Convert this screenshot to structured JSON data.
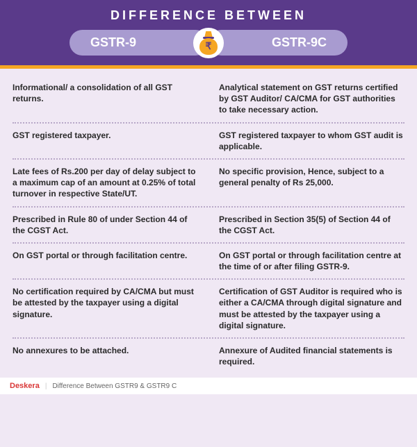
{
  "header": {
    "title": "DIFFERENCE  BETWEEN",
    "left_label": "GSTR-9",
    "right_label": "GSTR-9C",
    "icon_symbol": "₹"
  },
  "colors": {
    "header_bg": "#5a3a8a",
    "pill_bg": "#a89bd0",
    "accent": "#f5a623",
    "body_bg": "#f0e8f4",
    "dot_border": "#b8a8c8",
    "text": "#2a2a2a",
    "brand": "#d93838"
  },
  "rows": [
    {
      "left": "Informational/ a consolidation of all GST returns.",
      "right": "Analytical statement on GST returns certified by GST Auditor/ CA/CMA for GST authorities to take necessary action."
    },
    {
      "left": "GST registered taxpayer.",
      "right": "GST registered taxpayer to whom GST audit is applicable."
    },
    {
      "left": "Late fees of Rs.200 per day of delay subject to a maximum cap of an amount at 0.25% of total turnover in respective State/UT.",
      "right": "No specific provision, Hence, subject to a general penalty of Rs 25,000."
    },
    {
      "left": "Prescribed in Rule 80 of under Section 44 of the CGST Act.",
      "right": "Prescribed in Section 35(5) of Section 44 of the CGST Act."
    },
    {
      "left": "On GST portal or through facilitation centre.",
      "right": "On GST portal or through facilitation centre at the time of or after filing GSTR-9."
    },
    {
      "left": "No certification required by CA/CMA but must be attested by the taxpayer using a digital signature.",
      "right": "Certification of GST Auditor is required who is either a CA/CMA through digital signature and must be attested by the taxpayer using a digital signature."
    },
    {
      "left": "No annexures to be attached.",
      "right": "Annexure of Audited financial statements is required."
    }
  ],
  "footer": {
    "brand": "Deskera",
    "caption": "Difference Between GSTR9 & GSTR9 C"
  }
}
